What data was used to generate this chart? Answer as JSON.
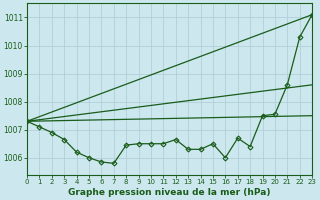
{
  "title": "Graphe pression niveau de la mer (hPa)",
  "bg_color": "#cce8ee",
  "grid_color": "#b0d0d8",
  "line_color": "#1a5c1a",
  "xlim": [
    0,
    23
  ],
  "ylim": [
    1005.4,
    1011.5
  ],
  "yticks": [
    1006,
    1007,
    1008,
    1009,
    1010,
    1011
  ],
  "xticks": [
    0,
    1,
    2,
    3,
    4,
    5,
    6,
    7,
    8,
    9,
    10,
    11,
    12,
    13,
    14,
    15,
    16,
    17,
    18,
    19,
    20,
    21,
    22,
    23
  ],
  "straight_lines": [
    {
      "x": [
        0,
        23
      ],
      "y": [
        1007.3,
        1011.1
      ]
    },
    {
      "x": [
        0,
        23
      ],
      "y": [
        1007.3,
        1008.6
      ]
    },
    {
      "x": [
        0,
        23
      ],
      "y": [
        1007.3,
        1007.5
      ]
    }
  ],
  "data_x": [
    0,
    1,
    2,
    3,
    4,
    5,
    6,
    7,
    8,
    9,
    10,
    11,
    12,
    13,
    14,
    15,
    16,
    17,
    18,
    19,
    20,
    21,
    22,
    23
  ],
  "data_y": [
    1007.3,
    1007.1,
    1006.9,
    1006.65,
    1006.2,
    1006.0,
    1005.85,
    1005.8,
    1006.45,
    1006.5,
    1006.5,
    1006.5,
    1006.65,
    1006.3,
    1006.3,
    1006.5,
    1006.0,
    1006.7,
    1006.4,
    1007.5,
    1007.55,
    1008.6,
    1010.3,
    1011.1
  ]
}
